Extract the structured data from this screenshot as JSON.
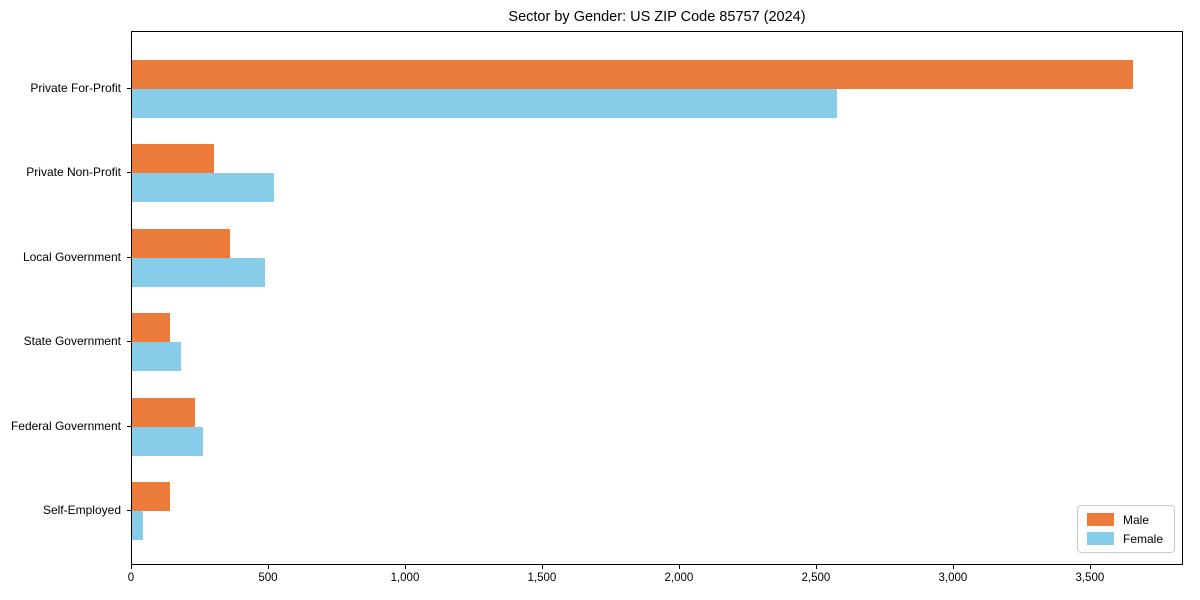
{
  "chart_data": {
    "type": "bar",
    "orientation": "horizontal",
    "title": "Sector by Gender: US ZIP Code 85757 (2024)",
    "categories": [
      "Private For-Profit",
      "Private Non-Profit",
      "Local Government",
      "State Government",
      "Federal Government",
      "Self-Employed"
    ],
    "series": [
      {
        "name": "Male",
        "color": "#ec7c3c",
        "values": [
          3660,
          300,
          360,
          140,
          230,
          140
        ]
      },
      {
        "name": "Female",
        "color": "#87cde9",
        "values": [
          2580,
          520,
          485,
          180,
          260,
          40
        ]
      }
    ],
    "xlabel": "",
    "ylabel": "",
    "xlim": [
      0,
      3840
    ],
    "xticks": [
      0,
      500,
      1000,
      1500,
      2000,
      2500,
      3000,
      3500
    ],
    "xtick_labels": [
      "0",
      "500",
      "1,000",
      "1,500",
      "2,000",
      "2,500",
      "3,000",
      "3,500"
    ],
    "grid": false,
    "legend": {
      "position": "lower right",
      "entries": [
        "Male",
        "Female"
      ]
    }
  }
}
